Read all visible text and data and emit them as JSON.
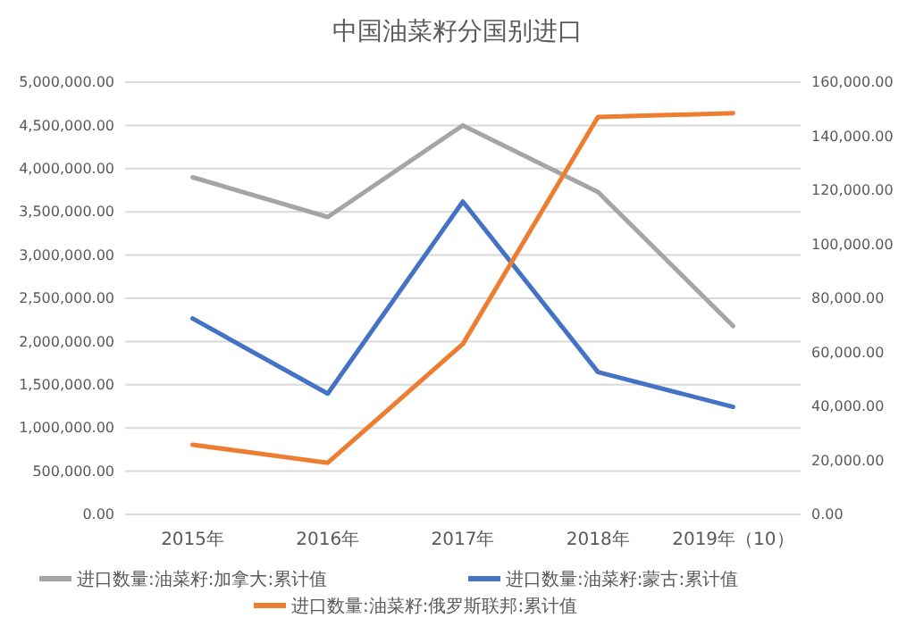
{
  "chart_data": {
    "type": "line",
    "title": "中国油菜籽分国别进口",
    "categories": [
      "2015年",
      "2016年",
      "2017年",
      "2018年",
      "2019年（10）"
    ],
    "series": [
      {
        "name": "进口数量:油菜籽:加拿大:累计值",
        "color": "#a5a5a5",
        "values": [
          3900000,
          3440000,
          4500000,
          3730000,
          2180000
        ]
      },
      {
        "name": "进口数量:油菜籽:蒙古:累计值",
        "color": "#4472c4",
        "axis": "y2",
        "values": [
          72500,
          44700,
          115800,
          52700,
          39800
        ]
      },
      {
        "name": "进口数量:油菜籽:俄罗斯联邦:累计值",
        "color": "#ed7d31",
        "axis": "y2",
        "values": [
          25800,
          19100,
          63100,
          147100,
          148500
        ]
      }
    ],
    "ylim": [
      0,
      5000000
    ],
    "yticks": [
      {
        "value": 0,
        "label": "0.00"
      },
      {
        "value": 500000,
        "label": "500,000.00"
      },
      {
        "value": 1000000,
        "label": "1,000,000.00"
      },
      {
        "value": 1500000,
        "label": "1,500,000.00"
      },
      {
        "value": 2000000,
        "label": "2,000,000.00"
      },
      {
        "value": 2500000,
        "label": "2,500,000.00"
      },
      {
        "value": 3000000,
        "label": "3,000,000.00"
      },
      {
        "value": 3500000,
        "label": "3,500,000.00"
      },
      {
        "value": 4000000,
        "label": "4,000,000.00"
      },
      {
        "value": 4500000,
        "label": "4,500,000.00"
      },
      {
        "value": 5000000,
        "label": "5,000,000.00"
      }
    ],
    "y2lim": [
      0,
      160000
    ],
    "y2ticks": [
      {
        "value": 0,
        "label": "0.00"
      },
      {
        "value": 20000,
        "label": "20,000.00"
      },
      {
        "value": 40000,
        "label": "40,000.00"
      },
      {
        "value": 60000,
        "label": "60,000.00"
      },
      {
        "value": 80000,
        "label": "80,000.00"
      },
      {
        "value": 100000,
        "label": "100,000.00"
      },
      {
        "value": 120000,
        "label": "120,000.00"
      },
      {
        "value": 140000,
        "label": "140,000.00"
      },
      {
        "value": 160000,
        "label": "160,000.00"
      }
    ],
    "grid": "y",
    "legend": "bottom",
    "marker": "none",
    "line_style": "solid"
  }
}
